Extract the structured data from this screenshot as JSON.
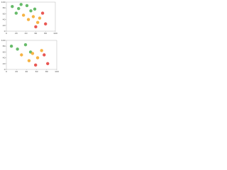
{
  "chart_data": [
    {
      "type": "scatter",
      "xlim": [
        0,
        100
      ],
      "ylim": [
        0,
        100
      ],
      "xticks": [
        0,
        20,
        40,
        60,
        80,
        100
      ],
      "yticks": [
        0,
        20,
        40,
        60,
        80,
        100
      ],
      "grid": false,
      "series": [
        {
          "color": "#4caf50",
          "x": [
            12,
            25,
            42,
            50,
            58,
            20,
            30
          ],
          "values": [
            85,
            78,
            88,
            70,
            76,
            62,
            92
          ]
        },
        {
          "color": "#f5a623",
          "x": [
            35,
            55,
            68,
            64,
            45
          ],
          "values": [
            55,
            50,
            45,
            30,
            40
          ]
        },
        {
          "color": "#e53935",
          "x": [
            74,
            80,
            60
          ],
          "values": [
            62,
            25,
            15
          ]
        }
      ]
    },
    {
      "type": "scatter",
      "xlim": [
        0,
        100
      ],
      "ylim": [
        0,
        100
      ],
      "xticks": [
        0,
        20,
        40,
        60,
        80,
        100
      ],
      "yticks": [
        0,
        20,
        40,
        60,
        80,
        100
      ],
      "grid": false,
      "series": [
        {
          "color": "#4caf50",
          "x": [
            10,
            22,
            38,
            48
          ],
          "values": [
            80,
            70,
            85,
            60
          ]
        },
        {
          "color": "#f5a623",
          "x": [
            30,
            52,
            62,
            70,
            45
          ],
          "values": [
            50,
            55,
            40,
            65,
            30
          ]
        },
        {
          "color": "#e53935",
          "x": [
            75,
            82,
            58
          ],
          "values": [
            50,
            20,
            15
          ]
        }
      ]
    }
  ]
}
